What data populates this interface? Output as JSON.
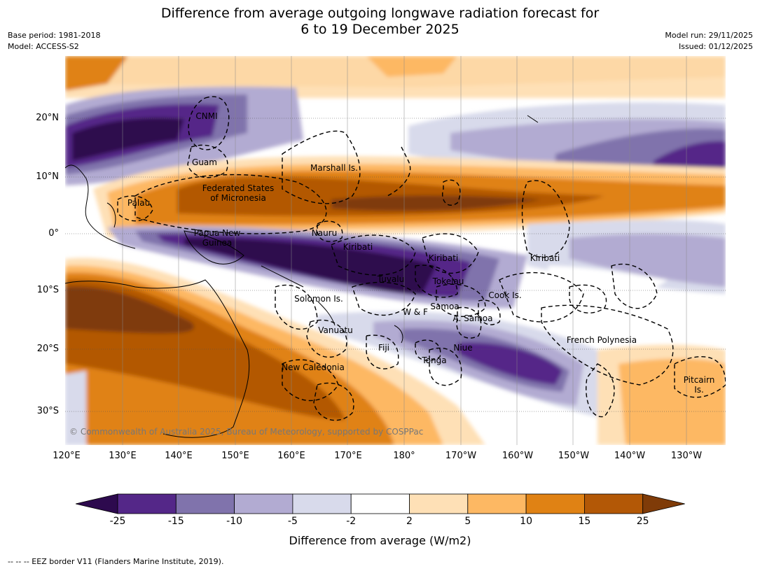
{
  "title_line1": "Difference from average outgoing longwave radiation forecast for",
  "title_line2": "6 to 19 December 2025",
  "base_period": "Base period: 1981-2018",
  "model": "Model: ACCESS-S2",
  "model_run": "Model run: 29/11/2025",
  "issued": "Issued: 01/12/2025",
  "lat_labels": [
    "20°N",
    "10°N",
    "0°",
    "10°S",
    "20°S",
    "30°S"
  ],
  "lon_labels": [
    "120°E",
    "130°E",
    "140°E",
    "150°E",
    "160°E",
    "170°E",
    "180°",
    "170°W",
    "160°W",
    "150°W",
    "140°W",
    "130°W"
  ],
  "regions": {
    "cnmi": "CNMI",
    "guam": "Guam",
    "marshall": "Marshall Is.",
    "fsm1": "Federated States",
    "fsm2": "of Micronesia",
    "palau": "Palau",
    "png1": "Papua New",
    "png2": "Guinea",
    "nauru": "Nauru",
    "kiribati_w": "Kiribati",
    "kiribati_c": "Kiribati",
    "kiribati_e": "Kiribati",
    "tuvalu": "Tuvalu",
    "tokelau": "Tokelau",
    "solomon": "Solomon Is.",
    "wf": "W & F",
    "samoa": "Samoa",
    "asamoa": "A. Samoa",
    "cook": "Cook Is.",
    "vanuatu": "Vanuatu",
    "fiji": "Fiji",
    "niue": "Niue",
    "tonga": "Tonga",
    "french_polynesia": "French Polynesia",
    "new_caledonia": "New Caledonia",
    "pitcairn1": "Pitcairn",
    "pitcairn2": "Is."
  },
  "copyright": "© Commonwealth of Australia 2025, Bureau of Meteorology, supported by COSPPac",
  "colorbar": {
    "ticks": [
      "-25",
      "-15",
      "-10",
      "-5",
      "-2",
      "2",
      "5",
      "10",
      "15",
      "25"
    ],
    "colors": [
      "#2d0a4e",
      "#542788",
      "#8073ac",
      "#b2abd2",
      "#d8daeb",
      "#ffffff",
      "#fee0b6",
      "#fdb863",
      "#e08214",
      "#b35806",
      "#7f3b08"
    ],
    "label": "Difference from average (W/m2)"
  },
  "footer": "--  --  -- EEZ border V11 (Flanders Marine Institute, 2019)."
}
